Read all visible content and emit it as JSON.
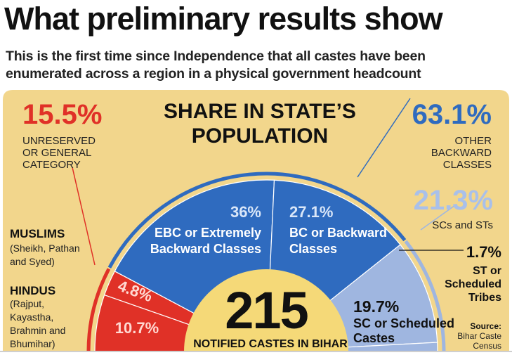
{
  "header": {
    "headline": "What preliminary results show",
    "subtitle_line1": "This is the first time since Independence that all castes have been",
    "subtitle_line2": "enumerated across a region in a physical government headcount"
  },
  "chart_data": {
    "type": "pie",
    "subtype": "semicircle-donut",
    "title_line1": "SHARE IN STATE’S",
    "title_line2": "POPULATION",
    "groups": [
      {
        "value": "15.5%",
        "label_lines": [
          "UNRESERVED",
          "OR GENERAL",
          "CATEGORY"
        ],
        "color": "#e03127"
      },
      {
        "value": "63.1%",
        "label_lines": [
          "OTHER",
          "BACKWARD",
          "CLASSES"
        ],
        "color": "#2f6bbf"
      },
      {
        "value": "21.3%",
        "label_lines": [
          "SCs and STs"
        ],
        "color": "#9fb6e0"
      }
    ],
    "slices": [
      {
        "name": "Hindus",
        "value": 10.7,
        "display": "10.7%",
        "color": "#e03127"
      },
      {
        "name": "Muslims",
        "value": 4.8,
        "display": "4.8%",
        "color": "#e03127"
      },
      {
        "name": "EBC or Extremely Backward Classes",
        "value": 36,
        "display": "36%",
        "label_lines": [
          "EBC or Extremely",
          "Backward Classes"
        ],
        "color": "#2f6bbf"
      },
      {
        "name": "BC or Backward Classes",
        "value": 27.1,
        "display": "27.1%",
        "label_lines": [
          "BC or Backward",
          "Classes"
        ],
        "color": "#2f6bbf"
      },
      {
        "name": "SC or Scheduled Castes",
        "value": 19.7,
        "display": "19.7%",
        "label_lines": [
          "SC or Scheduled",
          "Castes"
        ],
        "color": "#9fb6e0"
      },
      {
        "name": "ST or Scheduled Tribes",
        "value": 1.7,
        "display": "1.7%",
        "label_lines": [
          "ST or",
          "Scheduled",
          "Tribes"
        ],
        "color": "#9fb6e0"
      }
    ],
    "side_notes": {
      "muslims_title": "MUSLIMS",
      "muslims_detail": [
        "(Sheikh, Pathan",
        "and Syed)"
      ],
      "hindus_title": "HINDUS",
      "hindus_detail": [
        "(Rajput,",
        "Kayastha,",
        "Brahmin and",
        "Bhumihar)"
      ]
    },
    "center_number": "215",
    "center_label": "NOTIFIED CASTES IN BIHAR",
    "source_label": "Source:",
    "source_text": [
      "Bihar Caste",
      "Census"
    ],
    "colors": {
      "background": "#f2d68c",
      "red": "#e03127",
      "blue": "#2f6bbf",
      "light_blue": "#9fb6e0",
      "hub": "#f5d978",
      "text_dark": "#1a1a1a"
    }
  }
}
